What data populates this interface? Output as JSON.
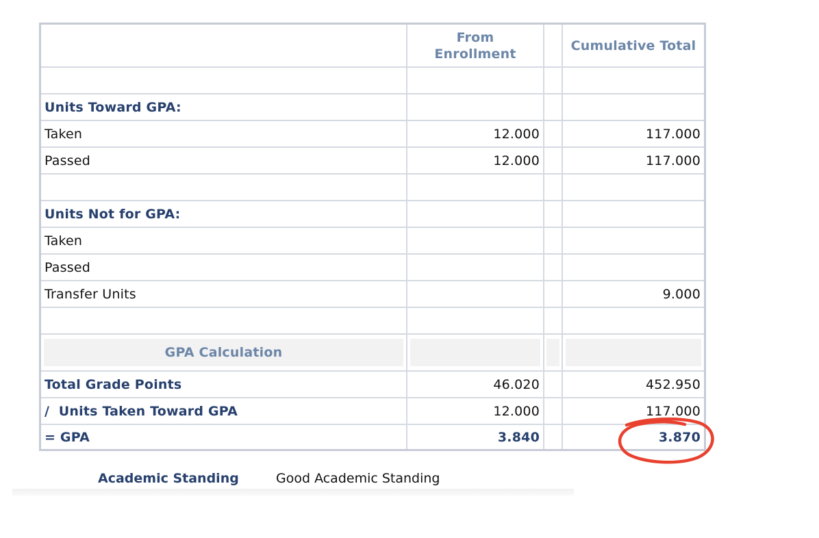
{
  "header": {
    "label_col": "",
    "from_enrollment": "From Enrollment",
    "cumulative_total": "Cumulative Total"
  },
  "sections": {
    "units_toward_gpa": "Units Toward GPA:",
    "units_not_for_gpa": "Units Not for GPA:"
  },
  "rows": {
    "toward_taken": {
      "label": "Taken",
      "from": "12.000",
      "cum": "117.000"
    },
    "toward_passed": {
      "label": "Passed",
      "from": "12.000",
      "cum": "117.000"
    },
    "not_taken": {
      "label": "Taken",
      "from": "",
      "cum": ""
    },
    "not_passed": {
      "label": "Passed",
      "from": "",
      "cum": ""
    },
    "transfer": {
      "label": "Transfer Units",
      "from": "",
      "cum": "9.000"
    }
  },
  "gpa_calculation": {
    "title": "GPA Calculation",
    "total_grade_points": {
      "label": "Total Grade Points",
      "from": "46.020",
      "cum": "452.950"
    },
    "units_taken": {
      "label": "/  Units Taken Toward GPA",
      "from": "12.000",
      "cum": "117.000"
    },
    "gpa": {
      "label": "= GPA",
      "from": "3.840",
      "cum": "3.870"
    }
  },
  "academic_standing": {
    "label": "Academic Standing",
    "value": "Good Academic Standing"
  },
  "colors": {
    "header_text": "#6c86a8",
    "section_text": "#27406d",
    "border": "#c6cbd6",
    "highlight_circle": "#e8412f"
  }
}
